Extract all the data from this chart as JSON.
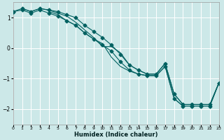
{
  "xlabel": "Humidex (Indice chaleur)",
  "bg_color": "#cce8e8",
  "grid_color": "#ffffff",
  "line_color": "#006060",
  "xlim": [
    0,
    23
  ],
  "ylim": [
    -2.5,
    1.5
  ],
  "yticks": [
    -2,
    -1,
    0,
    1
  ],
  "xticks": [
    0,
    1,
    2,
    3,
    4,
    5,
    6,
    7,
    8,
    9,
    10,
    11,
    12,
    13,
    14,
    15,
    16,
    17,
    18,
    19,
    20,
    21,
    22,
    23
  ],
  "upper_line_x": [
    0,
    1,
    2,
    3,
    4,
    5,
    6,
    7,
    8,
    9,
    10,
    11,
    12,
    13,
    14,
    15,
    16,
    17,
    18,
    19,
    20,
    21,
    22,
    23
  ],
  "upper_line_y": [
    1.2,
    1.3,
    1.2,
    1.3,
    1.25,
    1.2,
    1.1,
    1.0,
    0.75,
    0.55,
    0.35,
    0.1,
    -0.2,
    -0.55,
    -0.72,
    -0.85,
    -0.85,
    -0.5,
    -1.5,
    -1.85,
    -1.85,
    -1.85,
    -1.85,
    -1.15
  ],
  "lower_line_x": [
    0,
    1,
    2,
    3,
    4,
    5,
    6,
    7,
    8,
    9,
    10,
    11,
    12,
    13,
    14,
    15,
    16,
    17,
    18,
    19,
    20,
    21,
    22,
    23
  ],
  "lower_line_y": [
    1.2,
    1.25,
    1.15,
    1.25,
    1.15,
    1.05,
    0.9,
    0.75,
    0.5,
    0.3,
    0.1,
    -0.1,
    -0.45,
    -0.72,
    -0.85,
    -0.9,
    -0.9,
    -0.6,
    -1.65,
    -1.9,
    -1.9,
    -1.9,
    -1.9,
    -1.15
  ],
  "mid1_line_x": [
    1,
    2,
    3,
    4,
    5,
    6,
    7,
    8,
    9,
    10,
    11,
    12,
    13,
    14,
    15,
    16,
    17,
    18,
    19,
    20,
    21,
    22,
    23
  ],
  "mid1_line_y": [
    1.3,
    1.2,
    1.3,
    1.25,
    1.15,
    1.05,
    0.85,
    0.6,
    0.35,
    0.05,
    0.05,
    -0.15,
    -0.55,
    -0.72,
    -0.85,
    -0.85,
    -0.5,
    -1.5,
    -1.85,
    -1.85,
    -1.85,
    -1.85,
    -1.15
  ],
  "mid2_line_x": [
    4,
    5,
    6,
    7,
    8,
    9,
    10,
    11,
    12,
    13,
    14,
    15,
    16,
    17,
    18,
    19,
    20,
    21,
    22,
    23
  ],
  "mid2_line_y": [
    1.2,
    1.1,
    0.9,
    0.75,
    0.5,
    0.3,
    0.15,
    -0.3,
    -0.6,
    -0.75,
    -0.85,
    -0.9,
    -0.9,
    -0.6,
    -1.65,
    -1.9,
    -1.9,
    -1.9,
    -1.9,
    -1.15
  ]
}
